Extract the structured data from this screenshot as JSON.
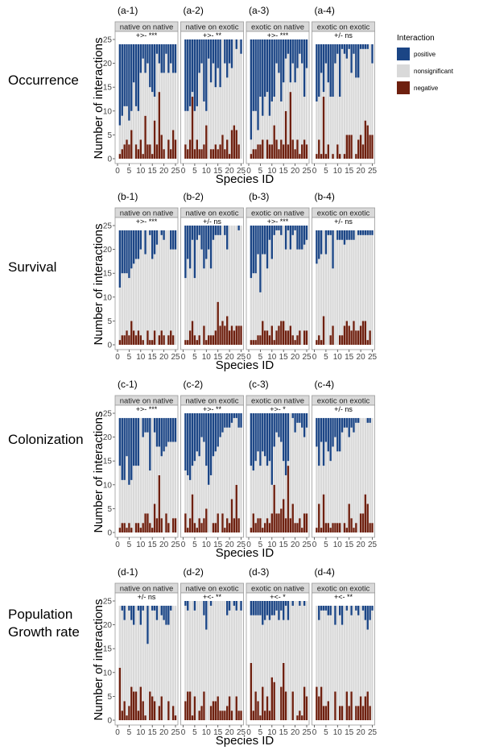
{
  "legend": {
    "title": "Interaction",
    "items": [
      {
        "label": "positive",
        "color": "#1b4585"
      },
      {
        "label": "nonsignificant",
        "color": "#d9d9d9"
      },
      {
        "label": "negative",
        "color": "#6e200f"
      }
    ]
  },
  "chart_data": {
    "type": "bar",
    "stacked": true,
    "xlabel": "Species ID",
    "ylabel": "Number of interactions",
    "ylim": [
      0,
      25
    ],
    "yticks": [
      "0",
      "5",
      "10",
      "15",
      "20",
      "25"
    ],
    "xticks": [
      "0",
      "5",
      "10",
      "15",
      "20",
      "25"
    ],
    "x": [
      1,
      2,
      3,
      4,
      5,
      6,
      7,
      8,
      9,
      10,
      11,
      12,
      13,
      14,
      15,
      16,
      17,
      18,
      19,
      20,
      21,
      22,
      23,
      24,
      25
    ],
    "rows": [
      {
        "label": "Occurrence",
        "panels": [
          {
            "id": "(a-1)",
            "strip": "native on native",
            "test": "+>- ***",
            "total": 24,
            "positive": [
              17,
              15,
              13,
              13,
              16,
              14,
              8,
              13,
              14,
              6,
              3,
              6,
              4,
              9,
              10,
              11,
              2,
              4,
              6,
              6,
              2,
              6,
              4,
              6,
              6
            ],
            "negative": [
              1,
              2,
              3,
              4,
              3,
              6,
              0,
              3,
              2,
              4,
              1,
              9,
              3,
              3,
              1,
              8,
              3,
              14,
              5,
              2,
              0,
              4,
              2,
              6,
              4
            ]
          },
          {
            "id": "(a-2)",
            "strip": "native on exotic",
            "test": "+>- **",
            "total": 25,
            "positive": [
              15,
              15,
              14,
              11,
              15,
              14,
              7,
              5,
              13,
              15,
              4,
              9,
              5,
              10,
              6,
              10,
              0,
              5,
              8,
              5,
              6,
              0,
              2,
              0,
              3
            ],
            "negative": [
              3,
              2,
              4,
              13,
              2,
              4,
              2,
              2,
              3,
              7,
              0,
              2,
              2,
              3,
              2,
              3,
              5,
              2,
              4,
              1,
              6,
              7,
              6,
              3,
              0
            ]
          },
          {
            "id": "(a-3)",
            "strip": "exotic on native",
            "test": "+>- ***",
            "total": 25,
            "positive": [
              21,
              15,
              15,
              19,
              12,
              16,
              12,
              11,
              16,
              13,
              12,
              5,
              7,
              13,
              9,
              4,
              3,
              9,
              5,
              9,
              6,
              3,
              5,
              12,
              6
            ],
            "negative": [
              1,
              2,
              2,
              3,
              3,
              4,
              0,
              4,
              3,
              3,
              7,
              4,
              2,
              4,
              3,
              10,
              3,
              14,
              4,
              2,
              4,
              1,
              3,
              4,
              3
            ]
          },
          {
            "id": "(a-4)",
            "strip": "exotic on exotic",
            "test": "+/- ns",
            "total": 24,
            "positive": [
              12,
              11,
              6,
              10,
              4,
              8,
              11,
              11,
              4,
              2,
              11,
              1,
              2,
              3,
              1,
              6,
              2,
              7,
              7,
              1,
              1,
              1,
              1,
              0,
              4
            ],
            "negative": [
              1,
              4,
              1,
              13,
              1,
              3,
              0,
              1,
              0,
              3,
              1,
              0,
              1,
              5,
              5,
              5,
              0,
              1,
              4,
              5,
              3,
              8,
              7,
              5,
              5
            ]
          }
        ]
      },
      {
        "label": "Survival",
        "panels": [
          {
            "id": "(b-1)",
            "strip": "native on native",
            "test": "+>- ***",
            "total": 24,
            "positive": [
              12,
              9,
              9,
              9,
              10,
              8,
              7,
              6,
              6,
              4,
              0,
              5,
              0,
              1,
              6,
              5,
              3,
              0,
              1,
              2,
              0,
              0,
              4,
              4,
              4
            ],
            "negative": [
              1,
              2,
              2,
              3,
              2,
              5,
              3,
              2,
              3,
              2,
              1,
              0,
              3,
              1,
              1,
              3,
              0,
              2,
              3,
              2,
              0,
              2,
              3,
              2,
              0
            ]
          },
          {
            "id": "(b-2)",
            "strip": "native on exotic",
            "test": "+/- ns",
            "total": 25,
            "positive": [
              11,
              7,
              9,
              3,
              11,
              3,
              2,
              5,
              9,
              7,
              5,
              9,
              3,
              2,
              2,
              2,
              0,
              2,
              5,
              0,
              0,
              0,
              0,
              1,
              0
            ],
            "negative": [
              1,
              1,
              3,
              5,
              2,
              1,
              2,
              0,
              4,
              1,
              2,
              2,
              2,
              3,
              9,
              4,
              5,
              4,
              6,
              3,
              4,
              3,
              4,
              4,
              4
            ]
          },
          {
            "id": "(b-3)",
            "strip": "exotic on native",
            "test": "+>- ***",
            "total": 25,
            "positive": [
              11,
              10,
              10,
              6,
              14,
              6,
              6,
              9,
              3,
              7,
              2,
              1,
              1,
              2,
              0,
              5,
              1,
              5,
              2,
              1,
              5,
              5,
              5,
              4,
              3
            ],
            "negative": [
              1,
              1,
              1,
              2,
              2,
              5,
              3,
              3,
              2,
              4,
              1,
              3,
              4,
              5,
              5,
              3,
              3,
              4,
              2,
              1,
              2,
              3,
              0,
              3,
              3
            ]
          },
          {
            "id": "(b-4)",
            "strip": "exotic on exotic",
            "test": "+/- ns",
            "total": 24,
            "positive": [
              7,
              6,
              5,
              0,
              5,
              1,
              1,
              8,
              0,
              2,
              2,
              2,
              3,
              2,
              2,
              2,
              2,
              0,
              1,
              1,
              1,
              1,
              1,
              1,
              1
            ],
            "negative": [
              1,
              2,
              1,
              6,
              0,
              0,
              2,
              4,
              0,
              0,
              2,
              2,
              4,
              5,
              4,
              3,
              5,
              3,
              3,
              4,
              5,
              5,
              1,
              3,
              0
            ]
          }
        ]
      },
      {
        "label": "Colonization",
        "panels": [
          {
            "id": "(c-1)",
            "strip": "native on native",
            "test": "+>- ***",
            "total": 24,
            "positive": [
              10,
              13,
              13,
              8,
              14,
              13,
              10,
              10,
              10,
              0,
              4,
              3,
              3,
              11,
              0,
              3,
              6,
              6,
              8,
              7,
              6,
              5,
              5,
              5,
              5
            ],
            "negative": [
              1,
              2,
              2,
              1,
              2,
              1,
              0,
              2,
              2,
              1,
              2,
              4,
              4,
              2,
              1,
              6,
              3,
              12,
              3,
              0,
              4,
              2,
              0,
              3,
              3
            ]
          },
          {
            "id": "(c-2)",
            "strip": "native on exotic",
            "test": "+>- **",
            "total": 25,
            "positive": [
              12,
              13,
              14,
              11,
              10,
              8,
              9,
              5,
              6,
              11,
              15,
              13,
              9,
              8,
              7,
              5,
              4,
              3,
              3,
              3,
              2,
              1,
              1,
              3,
              3
            ],
            "negative": [
              4,
              1,
              3,
              8,
              2,
              1,
              3,
              2,
              3,
              5,
              0,
              0,
              2,
              2,
              4,
              0,
              4,
              1,
              3,
              2,
              7,
              3,
              10,
              3,
              0
            ]
          },
          {
            "id": "(c-3)",
            "strip": "exotic on native",
            "test": "+>- *",
            "total": 25,
            "positive": [
              11,
              12,
              10,
              8,
              11,
              8,
              9,
              11,
              10,
              15,
              7,
              4,
              5,
              6,
              10,
              13,
              10,
              0,
              1,
              4,
              2,
              2,
              3,
              5,
              3
            ],
            "negative": [
              1,
              4,
              2,
              3,
              3,
              1,
              2,
              3,
              2,
              4,
              10,
              4,
              4,
              5,
              7,
              3,
              14,
              3,
              6,
              2,
              2,
              3,
              1,
              4,
              4
            ]
          },
          {
            "id": "(c-4)",
            "strip": "exotic on exotic",
            "test": "+/- ns",
            "total": 24,
            "positive": [
              6,
              10,
              5,
              10,
              5,
              7,
              9,
              6,
              4,
              7,
              7,
              3,
              2,
              2,
              4,
              2,
              3,
              1,
              1,
              0,
              0,
              0,
              1,
              1,
              0
            ],
            "negative": [
              1,
              6,
              1,
              8,
              2,
              2,
              1,
              2,
              2,
              2,
              2,
              0,
              2,
              1,
              6,
              3,
              1,
              2,
              0,
              4,
              4,
              8,
              6,
              2,
              2
            ]
          }
        ]
      },
      {
        "label": "Population Growth rate",
        "panels": [
          {
            "id": "(d-1)",
            "strip": "native on native",
            "test": "+/- ns",
            "total": 24,
            "positive": [
              0,
              1,
              3,
              0,
              1,
              3,
              4,
              0,
              1,
              4,
              1,
              0,
              8,
              0,
              1,
              1,
              3,
              0,
              2,
              3,
              4,
              4,
              1,
              0,
              0
            ],
            "negative": [
              11,
              2,
              4,
              1,
              3,
              7,
              6,
              6,
              2,
              7,
              4,
              1,
              0,
              6,
              5,
              4,
              0,
              3,
              5,
              0,
              0,
              4,
              0,
              3,
              1
            ]
          },
          {
            "id": "(d-2)",
            "strip": "native on exotic",
            "test": "+<- **",
            "total": 25,
            "positive": [
              1,
              2,
              0,
              0,
              2,
              0,
              0,
              0,
              3,
              6,
              0,
              1,
              0,
              0,
              0,
              0,
              0,
              0,
              3,
              2,
              0,
              1,
              2,
              0,
              2
            ],
            "negative": [
              4,
              6,
              6,
              1,
              5,
              0,
              2,
              3,
              6,
              0,
              0,
              3,
              4,
              4,
              5,
              2,
              2,
              2,
              3,
              5,
              2,
              0,
              5,
              2,
              2
            ]
          },
          {
            "id": "(d-3)",
            "strip": "exotic on native",
            "test": "+<- *",
            "total": 25,
            "positive": [
              3,
              3,
              3,
              3,
              3,
              5,
              4,
              3,
              4,
              3,
              3,
              2,
              4,
              2,
              4,
              1,
              4,
              0,
              1,
              0,
              0,
              1,
              0,
              1,
              0
            ],
            "negative": [
              12,
              2,
              6,
              4,
              1,
              7,
              2,
              5,
              2,
              9,
              8,
              0,
              0,
              7,
              12,
              6,
              0,
              0,
              6,
              0,
              1,
              2,
              1,
              7,
              5
            ]
          },
          {
            "id": "(d-4)",
            "strip": "exotic on exotic",
            "test": "+<- **",
            "total": 24,
            "positive": [
              0,
              3,
              1,
              1,
              1,
              2,
              2,
              0,
              4,
              0,
              2,
              4,
              0,
              1,
              0,
              2,
              0,
              1,
              2,
              0,
              1,
              3,
              5,
              3,
              1
            ],
            "negative": [
              7,
              5,
              7,
              3,
              3,
              4,
              0,
              0,
              6,
              0,
              3,
              3,
              0,
              6,
              3,
              6,
              0,
              3,
              3,
              5,
              3,
              5,
              6,
              3,
              0
            ]
          }
        ]
      }
    ]
  }
}
